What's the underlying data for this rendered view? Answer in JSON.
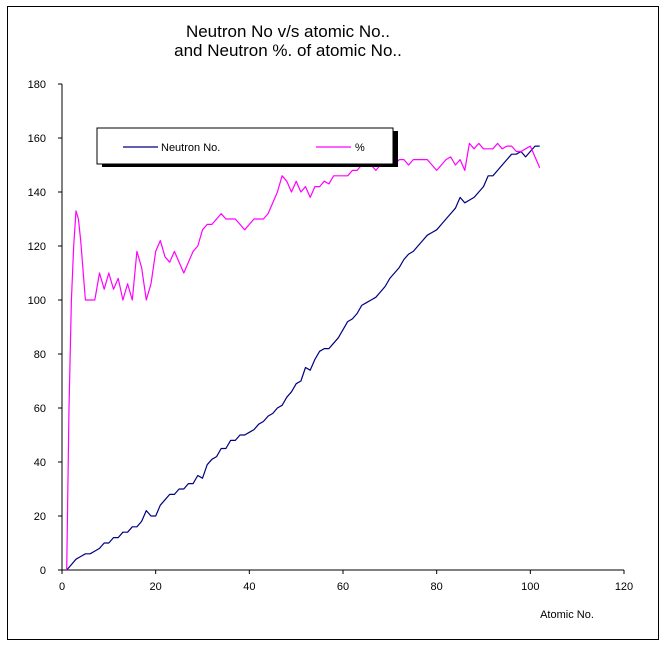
{
  "chart_data": {
    "type": "line",
    "title": [
      "Neutron No v/s atomic No..",
      "and Neutron %. of atomic No.."
    ],
    "xlabel": "Atomic No.",
    "ylabel": "",
    "xlim": [
      0,
      120
    ],
    "ylim": [
      0,
      180
    ],
    "x_ticks": [
      "0",
      "20",
      "40",
      "60",
      "80",
      "100",
      "120"
    ],
    "y_ticks": [
      "0",
      "20",
      "40",
      "60",
      "80",
      "100",
      "120",
      "140",
      "160",
      "180"
    ],
    "grid": false,
    "legend_position": "top-left",
    "series": [
      {
        "name": "Neutron No.",
        "color": "#000080",
        "x": [
          1,
          2,
          3,
          4,
          5,
          6,
          7,
          8,
          9,
          10,
          11,
          12,
          13,
          14,
          15,
          16,
          17,
          18,
          19,
          20,
          21,
          22,
          23,
          24,
          25,
          26,
          27,
          28,
          29,
          30,
          31,
          32,
          33,
          34,
          35,
          36,
          37,
          38,
          39,
          40,
          41,
          42,
          43,
          44,
          45,
          46,
          47,
          48,
          49,
          50,
          51,
          52,
          53,
          54,
          55,
          56,
          57,
          58,
          59,
          60,
          61,
          62,
          63,
          64,
          65,
          66,
          67,
          68,
          69,
          70,
          71,
          72,
          73,
          74,
          75,
          76,
          77,
          78,
          79,
          80,
          81,
          82,
          83,
          84,
          85,
          86,
          87,
          88,
          89,
          90,
          91,
          92,
          93,
          94,
          95,
          96,
          97,
          98,
          99,
          100,
          101,
          102
        ],
        "values": [
          0,
          2,
          4,
          5,
          6,
          6,
          7,
          8,
          10,
          10,
          12,
          12,
          14,
          14,
          16,
          16,
          18,
          22,
          20,
          20,
          24,
          26,
          28,
          28,
          30,
          30,
          32,
          32,
          35,
          34,
          39,
          41,
          42,
          45,
          45,
          48,
          48,
          50,
          50,
          51,
          52,
          54,
          55,
          57,
          58,
          60,
          61,
          64,
          66,
          69,
          70,
          75,
          74,
          78,
          81,
          82,
          82,
          84,
          86,
          89,
          92,
          93,
          95,
          98,
          99,
          100,
          101,
          103,
          105,
          108,
          110,
          112,
          115,
          117,
          118,
          120,
          122,
          124,
          125,
          126,
          128,
          130,
          132,
          134,
          138,
          136,
          137,
          138,
          140,
          142,
          146,
          146,
          148,
          150,
          152,
          154,
          154,
          155,
          153,
          155,
          157,
          157
        ]
      },
      {
        "name": "%",
        "color": "#FF00FF",
        "x": [
          1,
          1.5,
          2,
          2.5,
          3,
          3.5,
          4,
          5,
          6,
          7,
          8,
          9,
          10,
          11,
          12,
          13,
          14,
          15,
          16,
          17,
          18,
          19,
          20,
          21,
          22,
          23,
          24,
          25,
          26,
          27,
          28,
          29,
          30,
          31,
          32,
          33,
          34,
          35,
          36,
          37,
          38,
          39,
          40,
          41,
          42,
          43,
          44,
          45,
          46,
          47,
          48,
          49,
          50,
          51,
          52,
          53,
          54,
          55,
          56,
          57,
          58,
          59,
          60,
          61,
          62,
          63,
          64,
          65,
          66,
          67,
          68,
          69,
          70,
          71,
          72,
          73,
          74,
          75,
          76,
          77,
          78,
          79,
          80,
          81,
          82,
          83,
          84,
          85,
          86,
          87,
          88,
          89,
          90,
          91,
          92,
          93,
          94,
          95,
          96,
          97,
          98,
          99,
          100,
          101,
          102
        ],
        "values": [
          0,
          60,
          100,
          120,
          133,
          130,
          122,
          100,
          100,
          100,
          110,
          104,
          110,
          104,
          108,
          100,
          106,
          100,
          118,
          112,
          100,
          106,
          118,
          122,
          116,
          114,
          118,
          114,
          110,
          114,
          118,
          120,
          126,
          128,
          128,
          130,
          132,
          130,
          130,
          130,
          128,
          126,
          128,
          130,
          130,
          130,
          132,
          136,
          140,
          146,
          144,
          140,
          144,
          140,
          142,
          138,
          142,
          142,
          144,
          143,
          146,
          146,
          146,
          146,
          148,
          148,
          150,
          150,
          150,
          148,
          150,
          152,
          152,
          150,
          152,
          152,
          150,
          152,
          152,
          152,
          152,
          150,
          148,
          150,
          152,
          153,
          150,
          152,
          148,
          158,
          156,
          158,
          156,
          156,
          156,
          158,
          156,
          157,
          157,
          155,
          155,
          156,
          157,
          153,
          149
        ]
      }
    ]
  }
}
